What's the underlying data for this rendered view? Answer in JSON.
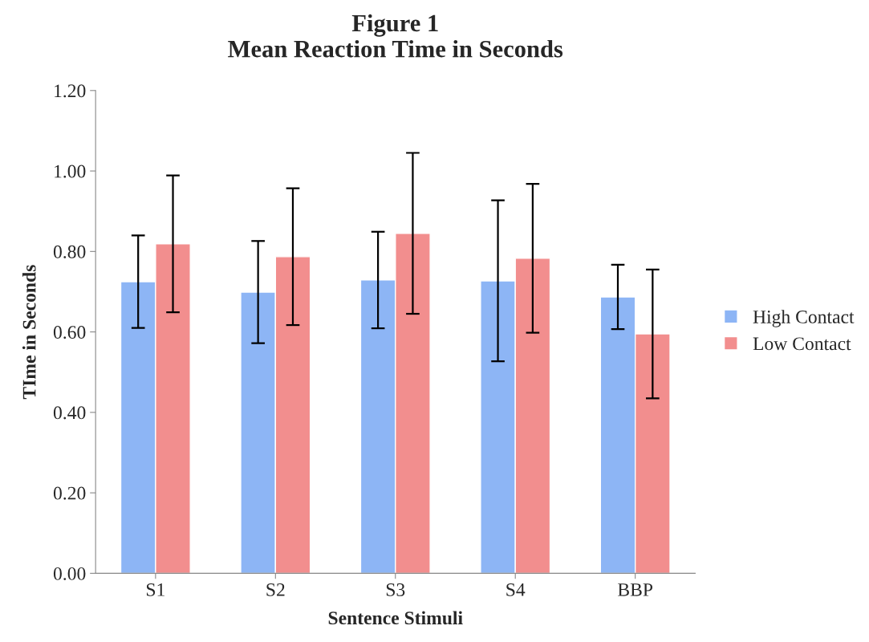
{
  "chart_data": {
    "type": "bar",
    "title": "Figure 1\nMean Reaction Time in Seconds",
    "xlabel": "Sentence Stimuli",
    "ylabel": "TIme in Seconds",
    "categories": [
      "S1",
      "S2",
      "S3",
      "S4",
      "BBP"
    ],
    "series": [
      {
        "name": "High Contact",
        "color": "#8db5f5",
        "values": [
          0.725,
          0.699,
          0.729,
          0.727,
          0.687
        ],
        "errors": [
          0.115,
          0.127,
          0.12,
          0.2,
          0.08
        ]
      },
      {
        "name": "Low Contact",
        "color": "#f28e8e",
        "values": [
          0.819,
          0.787,
          0.845,
          0.783,
          0.595
        ],
        "errors": [
          0.17,
          0.17,
          0.2,
          0.185,
          0.16
        ]
      }
    ],
    "ylim": [
      0,
      1.2
    ],
    "yticks": [
      {
        "value": 0,
        "label": "0.00"
      },
      {
        "value": 0.2,
        "label": "0.20"
      },
      {
        "value": 0.4,
        "label": "0.40"
      },
      {
        "value": 0.6,
        "label": "0.60"
      },
      {
        "value": 0.8,
        "label": "0.80"
      },
      {
        "value": 1.0,
        "label": "1.00"
      },
      {
        "value": 1.2,
        "label": "1.20"
      }
    ],
    "grid": false,
    "legend": "right"
  }
}
